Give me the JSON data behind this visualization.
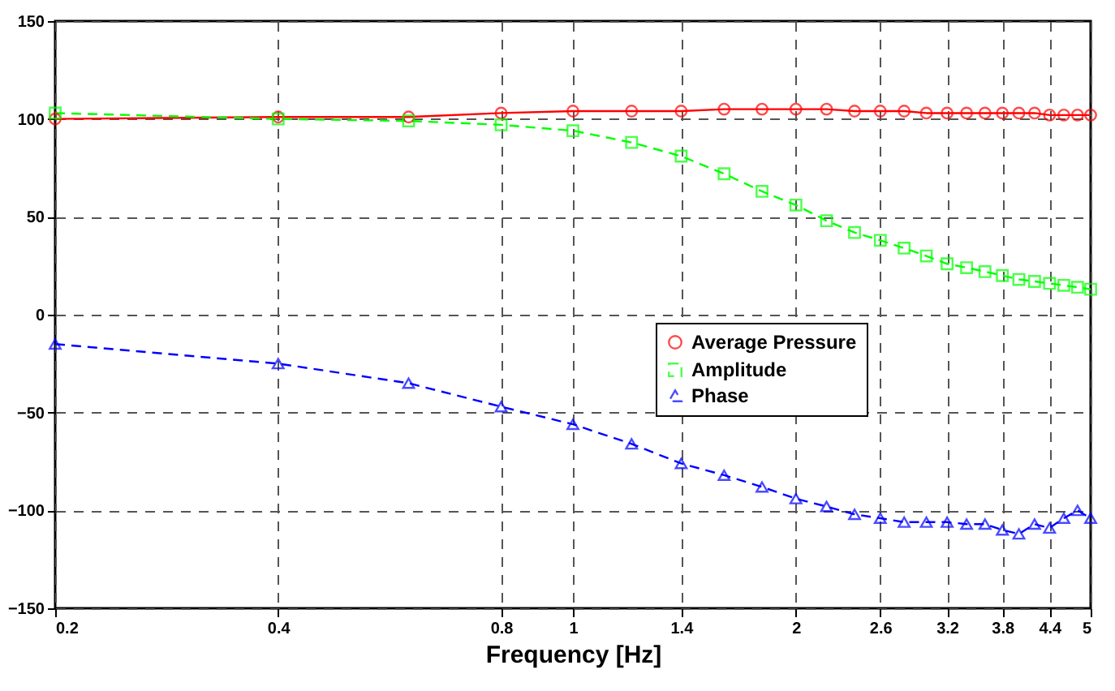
{
  "chart_data": {
    "type": "line",
    "xlabel": "Frequency [Hz]",
    "log": "x",
    "grid": true,
    "legend": "right",
    "x": [
      0.2,
      0.4,
      0.6,
      0.8,
      1.0,
      1.2,
      1.4,
      1.6,
      1.8,
      2.0,
      2.2,
      2.4,
      2.6,
      2.8,
      3.0,
      3.2,
      3.4,
      3.6,
      3.8,
      4.0,
      4.2,
      4.4,
      4.6,
      4.8,
      5.0
    ],
    "xlim": [
      0.2,
      5
    ],
    "xticks": [
      0.2,
      0.4,
      0.8,
      1,
      1.4,
      2,
      2.6,
      3.2,
      3.8,
      4.4,
      5
    ],
    "ylim": [
      -150,
      150
    ],
    "yticks": [
      -150,
      -100,
      -50,
      0,
      50,
      100,
      150
    ],
    "series": [
      {
        "name": "Average Pressure",
        "color": "#ff0000",
        "marker": "circle",
        "line_style": "solid",
        "values": [
          100,
          101,
          101,
          103,
          104,
          104,
          104,
          105,
          105,
          105,
          105,
          104,
          104,
          104,
          103,
          103,
          103,
          103,
          103,
          103,
          103,
          102,
          102,
          102,
          102
        ]
      },
      {
        "name": "Amplitude",
        "color": "#00ff00",
        "marker": "square",
        "line_style": "dashed",
        "values": [
          103,
          100,
          99,
          97,
          94,
          88,
          81,
          72,
          63,
          56,
          48,
          42,
          38,
          34,
          30,
          26,
          24,
          22,
          20,
          18,
          17,
          16,
          15,
          14,
          13
        ]
      },
      {
        "name": "Phase",
        "color": "#0000ff",
        "marker": "triangle",
        "line_style": "dashed",
        "values": [
          -15,
          -25,
          -35,
          -47,
          -56,
          -66,
          -76,
          -82,
          -88,
          -94,
          -98,
          -102,
          -104,
          -106,
          -106,
          -106,
          -107,
          -107,
          -110,
          -112,
          -107,
          -109,
          -104,
          -100,
          -104
        ]
      }
    ]
  }
}
